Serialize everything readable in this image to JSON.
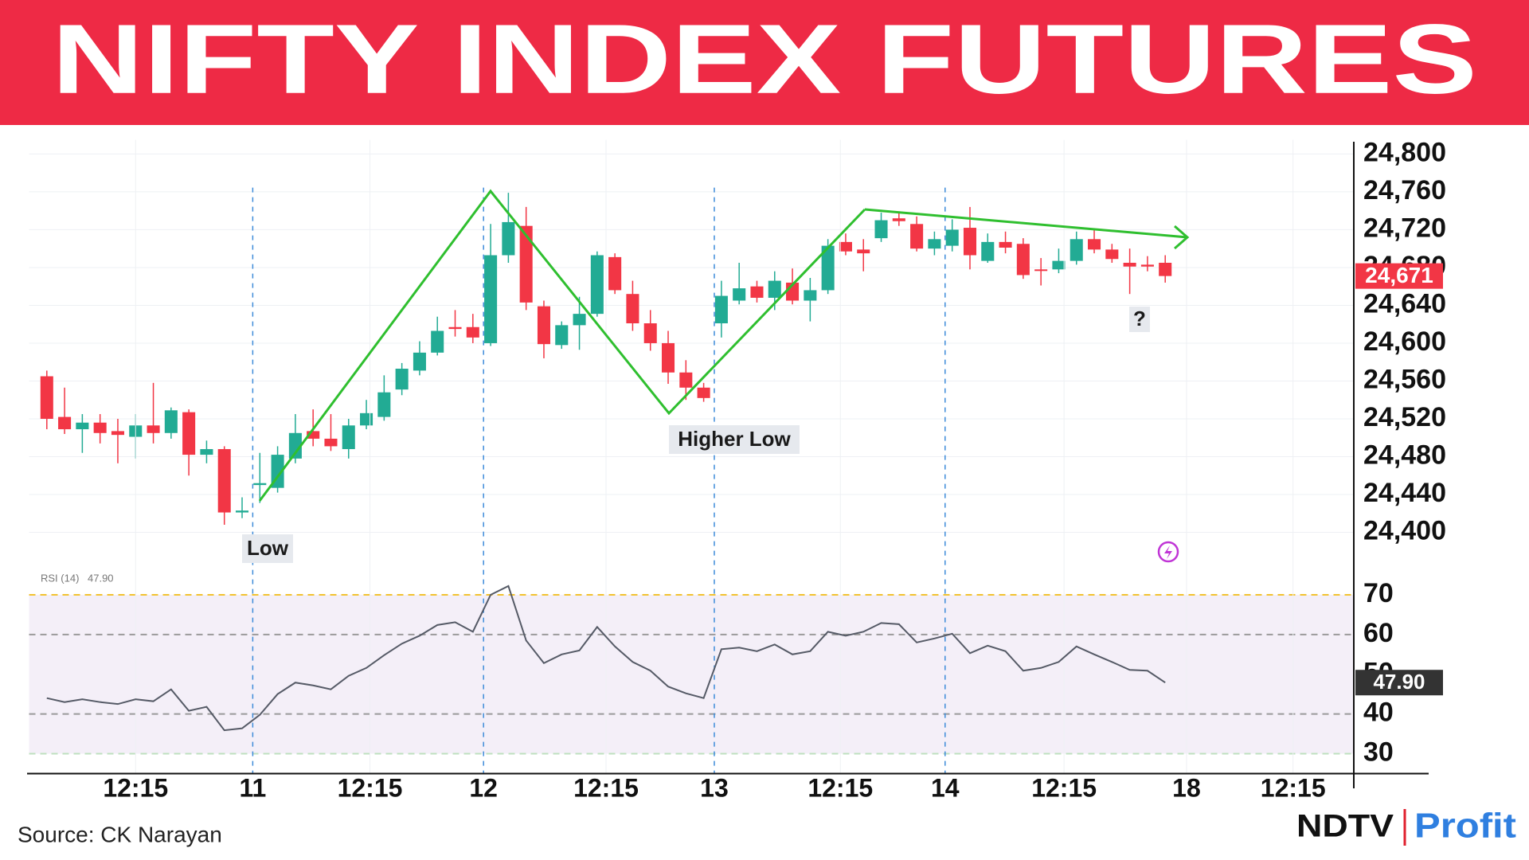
{
  "header": {
    "title": "NIFTY INDEX FUTURES"
  },
  "chart_data": [
    {
      "type": "candlestick",
      "x": [
        0,
        1,
        2,
        3,
        4,
        5,
        6,
        7,
        8,
        9,
        10,
        11,
        12,
        13,
        14,
        15,
        16,
        17,
        18,
        19,
        20,
        21,
        22,
        23,
        24,
        25,
        26,
        27,
        28,
        29,
        30,
        31,
        32,
        33,
        34,
        35,
        36,
        37,
        38,
        39,
        40,
        41,
        42,
        43,
        44,
        45,
        46,
        47,
        48,
        49,
        50,
        51,
        52,
        53,
        54,
        55,
        56,
        57,
        58,
        59,
        60,
        61,
        62,
        63
      ],
      "open": [
        24565,
        24522,
        24509,
        24516,
        24507,
        24501,
        24513,
        24505,
        24527,
        24482,
        24488,
        24421,
        24450,
        24447,
        24478,
        24507,
        24499,
        24488,
        24513,
        24522,
        24551,
        24571,
        24590,
        24617,
        24617,
        24600,
        24693,
        24724,
        24639,
        24598,
        24619,
        24631,
        24691,
        24652,
        24621,
        24600,
        24569,
        24553,
        24621,
        24645,
        24660,
        24648,
        24664,
        24645,
        24656,
        24707,
        24699,
        24711,
        24732,
        24726,
        24700,
        24703,
        24722,
        24687,
        24707,
        24705,
        24678,
        24678,
        24687,
        24710,
        24699,
        24685,
        24683,
        24685
      ],
      "high": [
        24571,
        24553,
        24525,
        24525,
        24520,
        24525,
        24558,
        24532,
        24530,
        24497,
        24491,
        24437,
        24484,
        24491,
        24525,
        24530,
        24525,
        24520,
        24540,
        24566,
        24579,
        24602,
        24628,
        24635,
        24631,
        24726,
        24759,
        24744,
        24645,
        24623,
        24649,
        24697,
        24695,
        24666,
        24635,
        24613,
        24582,
        24558,
        24666,
        24685,
        24666,
        24676,
        24679,
        24669,
        24710,
        24716,
        24710,
        24738,
        24738,
        24734,
        24718,
        24731,
        24744,
        24716,
        24718,
        24711,
        24690,
        24700,
        24718,
        24720,
        24705,
        24700,
        24692,
        24693
      ],
      "low": [
        24509,
        24504,
        24484,
        24494,
        24473,
        24478,
        24494,
        24499,
        24460,
        24473,
        24408,
        24415,
        24431,
        24442,
        24473,
        24491,
        24486,
        24478,
        24509,
        24518,
        24545,
        24566,
        24587,
        24607,
        24600,
        24597,
        24685,
        24635,
        24584,
        24594,
        24593,
        24628,
        24652,
        24613,
        24592,
        24557,
        24540,
        24538,
        24606,
        24641,
        24643,
        24635,
        24641,
        24623,
        24652,
        24693,
        24676,
        24707,
        24724,
        24697,
        24693,
        24697,
        24678,
        24685,
        24695,
        24668,
        24661,
        24674,
        24683,
        24695,
        24685,
        24652,
        24676,
        24664
      ],
      "close": [
        24520,
        24509,
        24516,
        24505,
        24503,
        24513,
        24505,
        24529,
        24482,
        24488,
        24421,
        24423,
        24452,
        24482,
        24505,
        24499,
        24491,
        24513,
        24526,
        24548,
        24573,
        24590,
        24613,
        24615,
        24606,
        24693,
        24728,
        24643,
        24599,
        24619,
        24631,
        24693,
        24656,
        24621,
        24600,
        24569,
        24553,
        24542,
        24650,
        24658,
        24648,
        24666,
        24645,
        24656,
        24703,
        24697,
        24695,
        24730,
        24729,
        24700,
        24710,
        24720,
        24693,
        24707,
        24701,
        24672,
        24677,
        24687,
        24710,
        24699,
        24689,
        24681,
        24681,
        24671
      ],
      "up_color": "#22ab94",
      "down_color": "#f23645",
      "last_value_label": "24,671",
      "xlim": [
        -1,
        73.6
      ],
      "ylim": [
        24360,
        24815
      ],
      "yticks": [
        {
          "value": 24800,
          "label": "24,800"
        },
        {
          "value": 24760,
          "label": "24,760"
        },
        {
          "value": 24720,
          "label": "24,720"
        },
        {
          "value": 24680,
          "label": "24,680"
        },
        {
          "value": 24640,
          "label": "24,640"
        },
        {
          "value": 24600,
          "label": "24,600"
        },
        {
          "value": 24560,
          "label": "24,560"
        },
        {
          "value": 24520,
          "label": "24,520"
        },
        {
          "value": 24480,
          "label": "24,480"
        },
        {
          "value": 24440,
          "label": "24,440"
        },
        {
          "value": 24400,
          "label": "24,400"
        }
      ],
      "grid": true,
      "annotations": [
        "Low",
        "Higher Low",
        "?"
      ]
    },
    {
      "type": "line",
      "x": [
        0,
        1,
        2,
        3,
        4,
        5,
        6,
        7,
        8,
        9,
        10,
        11,
        12,
        13,
        14,
        15,
        16,
        17,
        18,
        19,
        20,
        21,
        22,
        23,
        24,
        25,
        26,
        27,
        28,
        29,
        30,
        31,
        32,
        33,
        34,
        35,
        36,
        37,
        38,
        39,
        40,
        41,
        42,
        43,
        44,
        45,
        46,
        47,
        48,
        49,
        50,
        51,
        52,
        53,
        54,
        55,
        56,
        57,
        58,
        59,
        60,
        61,
        62,
        63
      ],
      "series": [
        {
          "name": "RSI (14)",
          "color": "#555a66",
          "values": [
            44.0,
            43.0,
            43.7,
            43.0,
            42.5,
            43.7,
            43.2,
            46.2,
            40.8,
            41.8,
            35.9,
            36.4,
            39.8,
            45.0,
            47.9,
            47.2,
            46.2,
            49.6,
            51.6,
            54.8,
            57.7,
            59.7,
            62.4,
            63.1,
            60.7,
            70.0,
            72.2,
            58.5,
            52.8,
            55.0,
            56.0,
            61.9,
            57.0,
            53.1,
            50.9,
            46.9,
            45.2,
            44.0,
            56.3,
            56.7,
            55.8,
            57.5,
            55.0,
            55.8,
            60.7,
            59.7,
            60.7,
            62.9,
            62.6,
            58.0,
            59.0,
            60.2,
            55.3,
            57.2,
            55.8,
            50.9,
            51.6,
            53.1,
            57.0,
            55.0,
            53.1,
            51.1,
            50.9,
            47.9
          ]
        }
      ],
      "last_value_label": "47.90",
      "xlim": [
        -1,
        73.6
      ],
      "xticks": [
        {
          "value": 5,
          "label": "12:15"
        },
        {
          "value": 11.6,
          "label": "11",
          "dashed": true
        },
        {
          "value": 18.2,
          "label": "12:15"
        },
        {
          "value": 24.6,
          "label": "12",
          "dashed": true
        },
        {
          "value": 31.5,
          "label": "12:15"
        },
        {
          "value": 37.6,
          "label": "13",
          "dashed": true
        },
        {
          "value": 44.7,
          "label": "12:15"
        },
        {
          "value": 50.6,
          "label": "14",
          "dashed": true
        },
        {
          "value": 57.3,
          "label": "12:15"
        },
        {
          "value": 64.2,
          "label": "18"
        },
        {
          "value": 70.2,
          "label": "12:15"
        }
      ],
      "ylim": [
        25,
        76
      ],
      "yticks": [
        30,
        40,
        50,
        60,
        70
      ],
      "band": [
        30,
        70
      ],
      "band_color": "#f4eff8",
      "reference_lines": [
        {
          "value": 70,
          "color": "#f2c230"
        },
        {
          "value": 60,
          "color": "#9a9a9a"
        },
        {
          "value": 40,
          "color": "#9a9a9a"
        },
        {
          "value": 30,
          "color": "#bfe0c0"
        }
      ]
    }
  ],
  "footer": {
    "source": "Source: CK Narayan",
    "brand": "NDTV",
    "product": "Profit"
  }
}
